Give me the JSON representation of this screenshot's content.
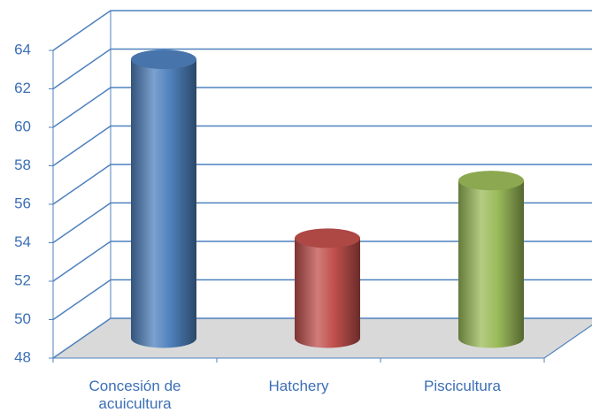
{
  "chart_data": {
    "type": "bar3d",
    "categories": [
      "Concesión de acuicultura",
      "Hatchery",
      "Piscicultura"
    ],
    "values": [
      62.5,
      53.2,
      56.2
    ],
    "colors": [
      "#4f81bd",
      "#c0504d",
      "#9bbb59"
    ],
    "ylim": [
      48,
      64
    ],
    "yticks": [
      48,
      50,
      52,
      54,
      56,
      58,
      60,
      62,
      64
    ],
    "grid": true
  }
}
